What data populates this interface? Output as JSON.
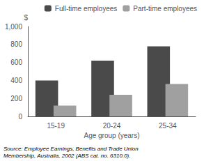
{
  "chart_data": {
    "type": "bar",
    "categories": [
      "15-19",
      "20-24",
      "25-34"
    ],
    "series": [
      {
        "name": "Full-time employees",
        "color": "#4a4a4a",
        "values": [
          400,
          620,
          780
        ]
      },
      {
        "name": "Part-time employees",
        "color": "#a0a0a0",
        "values": [
          120,
          240,
          360
        ]
      }
    ],
    "ylabel": "$",
    "xlabel": "Age group (years)",
    "ylim": [
      0,
      1000
    ],
    "yticks": [
      0,
      200,
      400,
      600,
      800,
      1000
    ],
    "legend": "upper right",
    "grid": false,
    "annotation": "Source: Employee Earnings, Benefits and Trade Union\nMembership, Australia, 2002 (ABS cat. no. 6310.0)."
  }
}
